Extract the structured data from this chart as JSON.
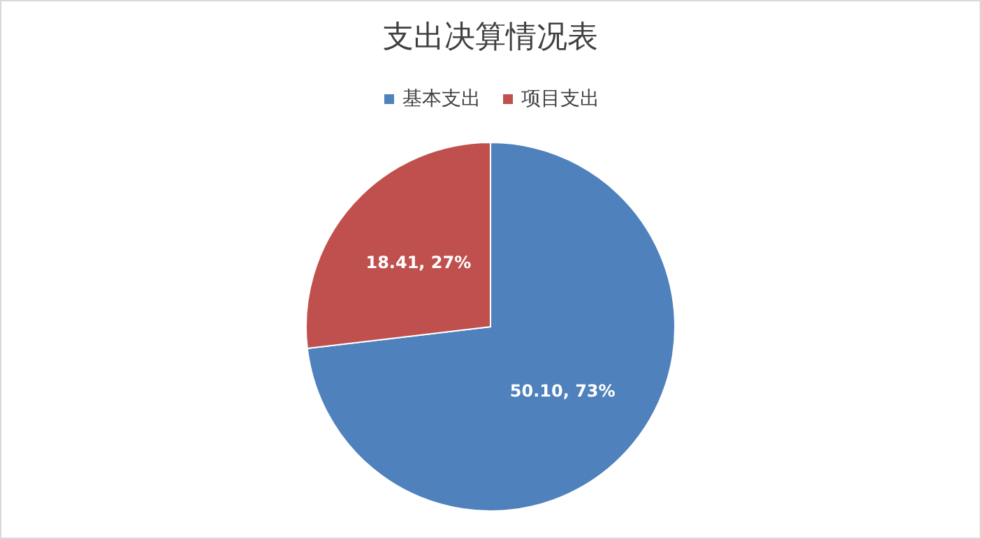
{
  "chart_data": {
    "type": "pie",
    "title": "支出决算情况表",
    "categories": [
      "基本支出",
      "项目支出"
    ],
    "values": [
      50.1,
      18.41
    ],
    "colors": [
      "#4f81bd",
      "#c0504d"
    ],
    "value_labels": [
      "50.10, 73%",
      "18.41, 27%"
    ],
    "legend": "top"
  }
}
